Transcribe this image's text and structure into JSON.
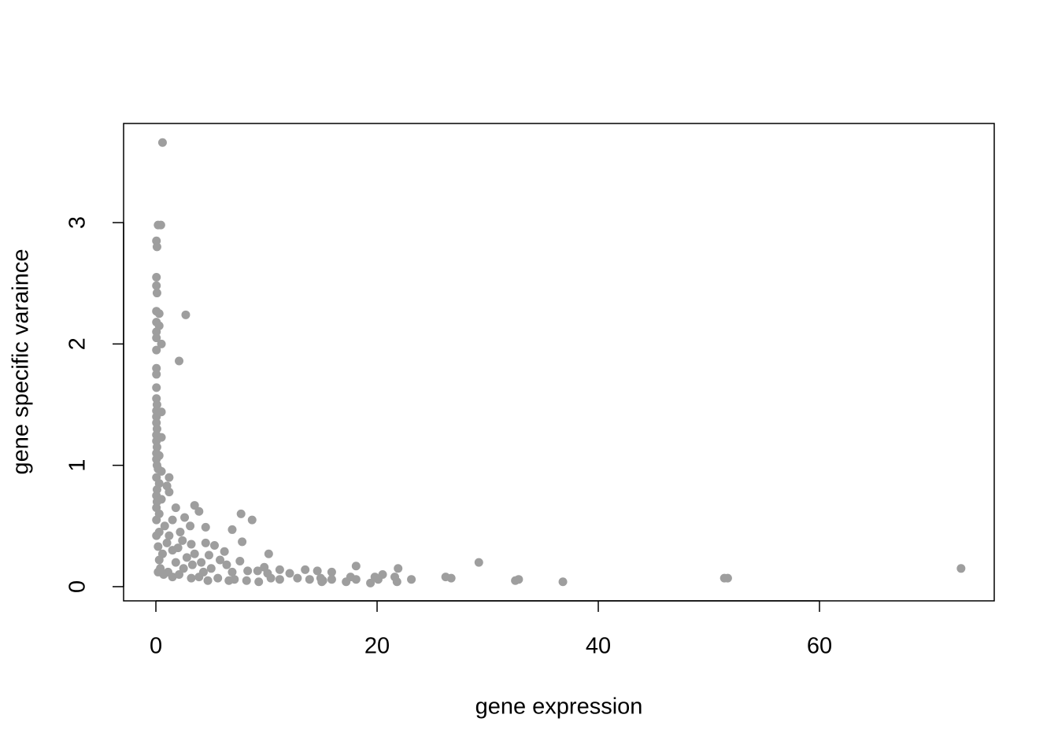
{
  "chart_data": {
    "type": "scatter",
    "x_label": "gene expression",
    "y_label": "gene specific varaince",
    "color": "#9e9e9e",
    "xlim": [
      -2.92,
      75.8
    ],
    "ylim": [
      -0.117,
      3.817
    ],
    "xticks": [
      0,
      20,
      40,
      60
    ],
    "yticks": [
      0,
      1,
      2,
      3
    ],
    "grid": false,
    "x": [
      0.6,
      0.2,
      0.45,
      0.05,
      0.1,
      0.05,
      0.05,
      0.1,
      2.7,
      0.05,
      0.3,
      0.05,
      0.3,
      0.05,
      0.05,
      0.5,
      0.05,
      2.1,
      0.05,
      0.05,
      0.05,
      0.05,
      0.1,
      0.05,
      0.5,
      0.05,
      0.05,
      0.1,
      0.05,
      0.5,
      0.05,
      0.1,
      0.05,
      0.3,
      0.05,
      0.1,
      0.2,
      0.5,
      1.2,
      0.05,
      0.3,
      1,
      0.1,
      1.2,
      0.05,
      0.5,
      0.1,
      3.5,
      1.8,
      0.05,
      3.9,
      7.7,
      0.3,
      2.6,
      8.7,
      1.5,
      0.05,
      4.5,
      3.1,
      0.8,
      6.9,
      2.2,
      0.3,
      1.2,
      0.05,
      2.4,
      4.5,
      7.8,
      1,
      3.2,
      5.3,
      0.2,
      2,
      6.2,
      1.5,
      10.2,
      4.8,
      3.5,
      0.6,
      2.8,
      5.8,
      7.6,
      0.3,
      1.8,
      4.1,
      29.2,
      18.1,
      6.4,
      9.8,
      21.9,
      72.8,
      11.2,
      13.5,
      14.6,
      8.3,
      15.9,
      0.4,
      2.5,
      5,
      12.1,
      20.5,
      17.6,
      26.2,
      26.7,
      21.6,
      32.5,
      32.8,
      51.4,
      51.7,
      36.8,
      23.1,
      19.8,
      18.1,
      15.9,
      15.1,
      14.9,
      13.9,
      12.8,
      11.2,
      10.4,
      9.3,
      8.2,
      7.1,
      6.6,
      5.6,
      4.7,
      3.9,
      3.2,
      1.5,
      0.7,
      0.2,
      1.1,
      2.1,
      17.2,
      19.4,
      20.1,
      21.8,
      15,
      10.1,
      9.2,
      6.9,
      3.3,
      4.3
    ],
    "values": [
      3.66,
      2.98,
      2.98,
      2.85,
      2.8,
      2.55,
      2.48,
      2.42,
      2.24,
      2.27,
      2.25,
      2.18,
      2.15,
      2.1,
      2.05,
      2,
      1.95,
      1.86,
      1.8,
      1.75,
      1.64,
      1.55,
      1.5,
      1.45,
      1.44,
      1.4,
      1.35,
      1.3,
      1.25,
      1.23,
      1.2,
      1.15,
      1.1,
      1.08,
      1.05,
      1,
      0.97,
      0.95,
      0.9,
      0.9,
      0.85,
      0.83,
      0.8,
      0.78,
      0.75,
      0.72,
      0.7,
      0.67,
      0.65,
      0.65,
      0.62,
      0.6,
      0.6,
      0.57,
      0.55,
      0.55,
      0.55,
      0.49,
      0.5,
      0.5,
      0.47,
      0.45,
      0.45,
      0.42,
      0.42,
      0.38,
      0.36,
      0.37,
      0.36,
      0.35,
      0.34,
      0.33,
      0.32,
      0.29,
      0.3,
      0.27,
      0.26,
      0.27,
      0.27,
      0.24,
      0.22,
      0.21,
      0.22,
      0.2,
      0.2,
      0.2,
      0.17,
      0.18,
      0.16,
      0.15,
      0.15,
      0.14,
      0.14,
      0.13,
      0.13,
      0.12,
      0.15,
      0.15,
      0.15,
      0.11,
      0.1,
      0.08,
      0.08,
      0.07,
      0.08,
      0.05,
      0.06,
      0.07,
      0.07,
      0.04,
      0.06,
      0.08,
      0.06,
      0.06,
      0.05,
      0.07,
      0.06,
      0.07,
      0.06,
      0.07,
      0.04,
      0.05,
      0.06,
      0.05,
      0.07,
      0.05,
      0.08,
      0.07,
      0.08,
      0.1,
      0.12,
      0.12,
      0.1,
      0.04,
      0.03,
      0.06,
      0.04,
      0.04,
      0.11,
      0.13,
      0.12,
      0.18,
      0.12
    ]
  }
}
